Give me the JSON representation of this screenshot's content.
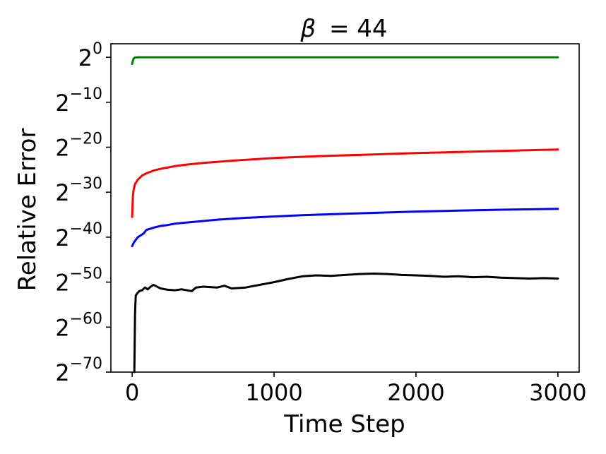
{
  "chart_data": {
    "type": "line",
    "title_prefix": "β",
    "title_value": "= 44",
    "xlabel": "Time Step",
    "ylabel": "Relative Error",
    "xlim": [
      -150,
      3150
    ],
    "ylim": [
      -70,
      3
    ],
    "y_scale": "log2",
    "grid": false,
    "legend": "none",
    "x_ticks": [
      {
        "value": 0,
        "label": "0"
      },
      {
        "value": 1000,
        "label": "1000"
      },
      {
        "value": 2000,
        "label": "2000"
      },
      {
        "value": 3000,
        "label": "3000"
      }
    ],
    "y_ticks": [
      {
        "value": 0,
        "base": "2",
        "exp": "0"
      },
      {
        "value": -10,
        "base": "2",
        "exp": "−10"
      },
      {
        "value": -20,
        "base": "2",
        "exp": "−20"
      },
      {
        "value": -30,
        "base": "2",
        "exp": "−30"
      },
      {
        "value": -40,
        "base": "2",
        "exp": "−40"
      },
      {
        "value": -50,
        "base": "2",
        "exp": "−50"
      },
      {
        "value": -60,
        "base": "2",
        "exp": "−60"
      },
      {
        "value": -70,
        "base": "2",
        "exp": "−70"
      }
    ],
    "series": [
      {
        "color": "#008000",
        "x": [
          0,
          5,
          10,
          20,
          40,
          80,
          150,
          300,
          600,
          1000,
          1500,
          2000,
          2500,
          3000
        ],
        "y": [
          -1.5,
          -0.8,
          -0.3,
          -0.05,
          0,
          0,
          0,
          0,
          0,
          0,
          0,
          0,
          0,
          0
        ]
      },
      {
        "color": "#ff0000",
        "x": [
          0,
          5,
          10,
          20,
          40,
          70,
          100,
          150,
          200,
          300,
          400,
          500,
          700,
          1000,
          1300,
          1700,
          2000,
          2500,
          3000
        ],
        "y": [
          -35.5,
          -31,
          -29.5,
          -28.2,
          -27.2,
          -26.3,
          -25.8,
          -25.2,
          -24.8,
          -24.2,
          -23.8,
          -23.5,
          -23.0,
          -22.4,
          -22.0,
          -21.6,
          -21.3,
          -20.9,
          -20.5
        ]
      },
      {
        "color": "#0000ff",
        "x": [
          0,
          10,
          20,
          40,
          60,
          80,
          100,
          130,
          160,
          200,
          250,
          300,
          400,
          500,
          600,
          800,
          1000,
          1200,
          1500,
          1800,
          2000,
          2300,
          2600,
          3000
        ],
        "y": [
          -42.0,
          -41.3,
          -40.8,
          -40.0,
          -39.6,
          -39.2,
          -38.4,
          -38.1,
          -37.8,
          -37.5,
          -37.3,
          -37.0,
          -36.7,
          -36.4,
          -36.1,
          -35.7,
          -35.4,
          -35.1,
          -34.8,
          -34.5,
          -34.3,
          -34.1,
          -33.9,
          -33.7
        ]
      },
      {
        "color": "#000000",
        "x": [
          15,
          20,
          25,
          35,
          50,
          70,
          90,
          110,
          130,
          150,
          200,
          250,
          300,
          350,
          420,
          450,
          500,
          600,
          650,
          700,
          800,
          900,
          1000,
          1100,
          1200,
          1300,
          1400,
          1500,
          1600,
          1700,
          1800,
          1900,
          2000,
          2100,
          2200,
          2300,
          2400,
          2500,
          2600,
          2700,
          2800,
          2900,
          3000
        ],
        "y": [
          -70,
          -57,
          -53,
          -52.5,
          -52,
          -51.8,
          -51.2,
          -51.6,
          -51.0,
          -50.6,
          -51.4,
          -51.7,
          -51.8,
          -51.6,
          -52.0,
          -51.2,
          -51.0,
          -51.2,
          -50.8,
          -51.4,
          -51.2,
          -50.6,
          -50.0,
          -49.3,
          -48.7,
          -48.5,
          -48.6,
          -48.4,
          -48.2,
          -48.1,
          -48.2,
          -48.4,
          -48.5,
          -48.6,
          -48.8,
          -48.7,
          -48.9,
          -48.8,
          -49.0,
          -49.1,
          -49.2,
          -49.1,
          -49.2
        ]
      }
    ]
  }
}
